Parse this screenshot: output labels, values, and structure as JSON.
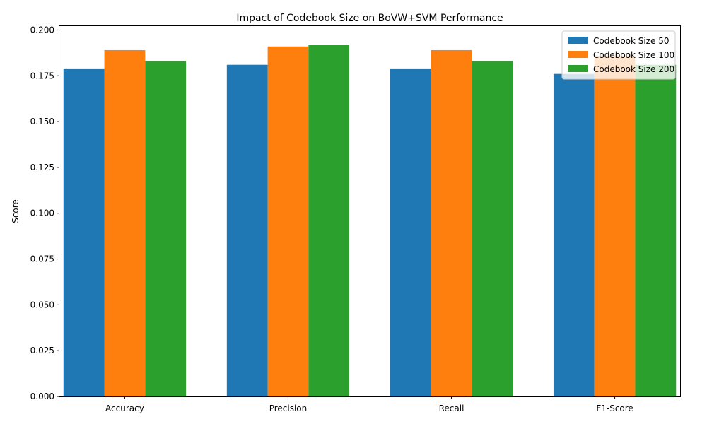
{
  "chart_data": {
    "type": "bar",
    "title": "Impact of Codebook Size on BoVW+SVM Performance",
    "xlabel": "",
    "ylabel": "Score",
    "categories": [
      "Accuracy",
      "Precision",
      "Recall",
      "F1-Score"
    ],
    "series": [
      {
        "name": "Codebook Size 50",
        "color": "#1f77b4",
        "values": [
          0.179,
          0.181,
          0.179,
          0.176
        ]
      },
      {
        "name": "Codebook Size 100",
        "color": "#ff7f0e",
        "values": [
          0.189,
          0.191,
          0.189,
          0.186
        ]
      },
      {
        "name": "Codebook Size 200",
        "color": "#2ca02c",
        "values": [
          0.183,
          0.192,
          0.183,
          0.181
        ]
      }
    ],
    "ylim": [
      0,
      0.2021
    ],
    "yticks": [
      "0.000",
      "0.025",
      "0.050",
      "0.075",
      "0.100",
      "0.125",
      "0.150",
      "0.175",
      "0.200"
    ],
    "legend_position": "top-right",
    "grid": false
  }
}
